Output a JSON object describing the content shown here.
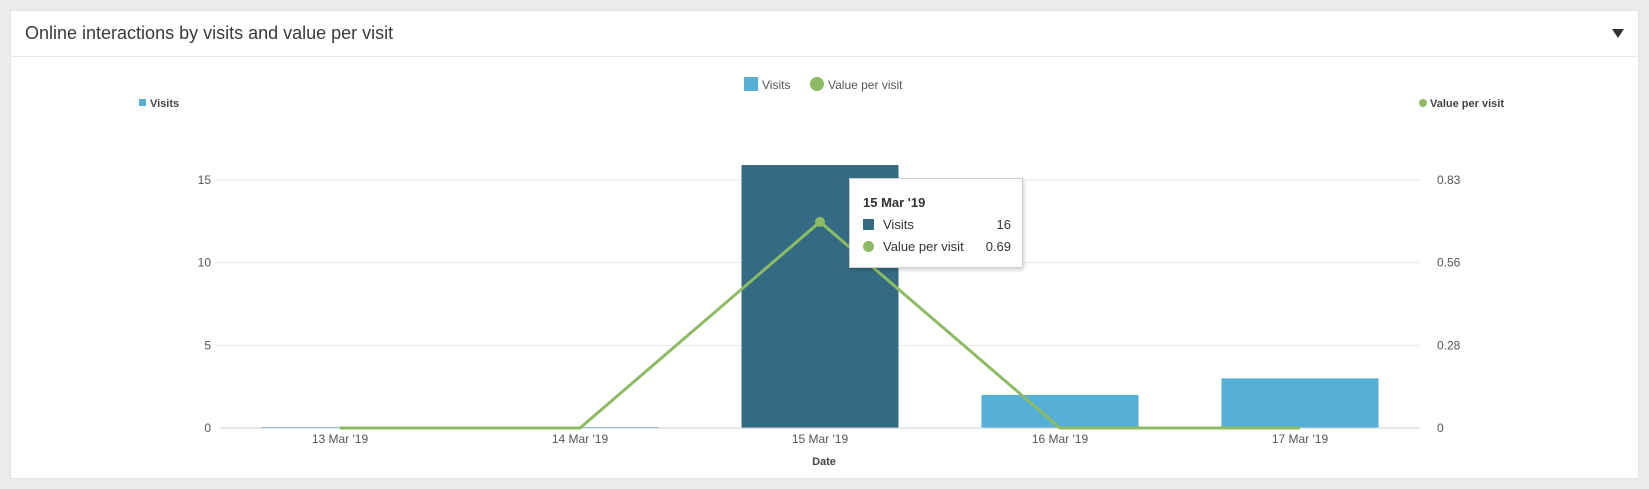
{
  "panel": {
    "title": "Online interactions by visits and value per visit"
  },
  "colors": {
    "visits": "#55afd7",
    "visits_highlight": "#336b84",
    "value_per_visit": "#8dbb63",
    "grid": "#e4e4e4"
  },
  "chart_data": {
    "type": "bar",
    "categories": [
      "13 Mar '19",
      "14 Mar '19",
      "15 Mar '19",
      "16 Mar '19",
      "17 Mar '19"
    ],
    "xlabel": "Date",
    "legend_position": "top-center",
    "legend": [
      "Visits",
      "Value per visit"
    ],
    "highlighted_category": "15 Mar '19",
    "series": [
      {
        "name": "Visits",
        "type": "bar",
        "axis": "left",
        "values": [
          0,
          0,
          16,
          2,
          3
        ]
      },
      {
        "name": "Value per visit",
        "type": "line",
        "axis": "right",
        "values": [
          0,
          0,
          0.69,
          0,
          0
        ]
      }
    ],
    "y_left": {
      "label": "Visits",
      "ylim": [
        0,
        15
      ],
      "ticks": [
        "0",
        "5",
        "10",
        "15"
      ]
    },
    "y_right": {
      "label": "Value per visit",
      "ylim": [
        0,
        0.83
      ],
      "ticks": [
        "0",
        "0.28",
        "0.56",
        "0.83"
      ]
    },
    "grid": true
  },
  "tooltip": {
    "date": "15 Mar '19",
    "rows": [
      {
        "name": "Visits",
        "value": "16"
      },
      {
        "name": "Value per visit",
        "value": "0.69"
      }
    ]
  }
}
